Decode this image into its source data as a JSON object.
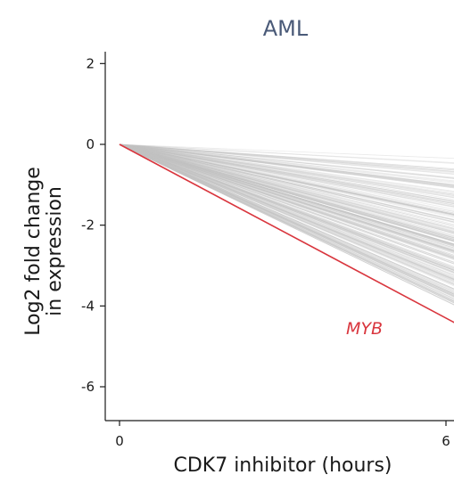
{
  "chart_data": {
    "type": "line",
    "title": "AML",
    "xlabel": "CDK7 inhibitor (hours)",
    "ylabel": [
      "Log2 fold change",
      "in expression"
    ],
    "xlim": [
      0,
      6
    ],
    "ylim": [
      -7,
      2.5
    ],
    "x_ticks": [
      0,
      6
    ],
    "y_ticks": [
      2,
      0,
      -2,
      -4,
      -6
    ],
    "grid": false,
    "colors": {
      "background_lines": "#c4c4c4",
      "highlight": "#d9363e",
      "axis": "#1a1a1a",
      "title": "#4a5a78"
    },
    "background_series": {
      "description_free": true,
      "x": [
        0,
        6
      ],
      "start_value": 0,
      "end_values_range": [
        -3.9,
        -0.3
      ]
    },
    "highlight_series": {
      "name": "MYB",
      "x": [
        0,
        6
      ],
      "values": [
        0,
        -4.3
      ]
    },
    "annotations": [
      {
        "text": "MYB",
        "x": 5.05,
        "y": -4.3,
        "color": "#d9363e"
      }
    ]
  }
}
